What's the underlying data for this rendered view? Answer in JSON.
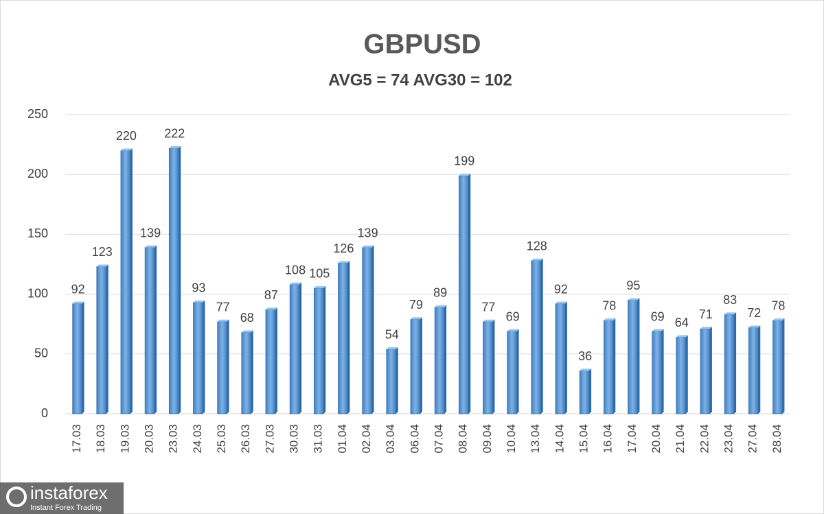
{
  "chart_data": {
    "type": "bar",
    "title": "GBPUSD",
    "subtitle": "AVG5 = 74 AVG30 = 102",
    "categories": [
      "17.03",
      "18.03",
      "19.03",
      "20.03",
      "23.03",
      "24.03",
      "25.03",
      "26.03",
      "27.03",
      "30.03",
      "31.03",
      "01.04",
      "02.04",
      "03.04",
      "06.04",
      "07.04",
      "08.04",
      "09.04",
      "10.04",
      "13.04",
      "14.04",
      "15.04",
      "16.04",
      "17.04",
      "20.04",
      "21.04",
      "22.04",
      "23.04",
      "27.04",
      "28.04"
    ],
    "values": [
      92,
      123,
      220,
      139,
      222,
      93,
      77,
      68,
      87,
      108,
      105,
      126,
      139,
      54,
      79,
      89,
      199,
      77,
      69,
      128,
      92,
      36,
      78,
      95,
      69,
      64,
      71,
      83,
      72,
      78
    ],
    "color": "#5b9bd5",
    "ylim": [
      0,
      250
    ],
    "yticks": [
      0,
      50,
      100,
      150,
      200,
      250
    ],
    "grid": true
  },
  "watermark": {
    "name": "instaforex",
    "tagline": "Instant Forex Trading"
  }
}
